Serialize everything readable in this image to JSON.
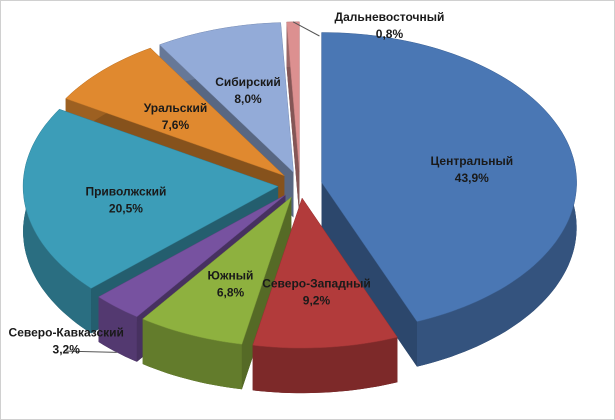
{
  "chart_data": {
    "type": "pie3d",
    "categories": [
      "Центральный",
      "Северо-Западный",
      "Южный",
      "Северо-Кавказский",
      "Приволжский",
      "Уральский",
      "Сибирский",
      "Дальневосточный"
    ],
    "values": [
      43.9,
      9.2,
      6.8,
      3.2,
      20.5,
      7.6,
      8.0,
      0.8
    ],
    "value_labels": [
      "43,9%",
      "9,2%",
      "6,8%",
      "3,2%",
      "20,5%",
      "7,6%",
      "8,0%",
      "0,8%"
    ],
    "colors": [
      "#4a77b4",
      "#b23b3b",
      "#8eb13f",
      "#7752a0",
      "#3c9db8",
      "#e0892f",
      "#93abd8",
      "#dc9090"
    ]
  }
}
